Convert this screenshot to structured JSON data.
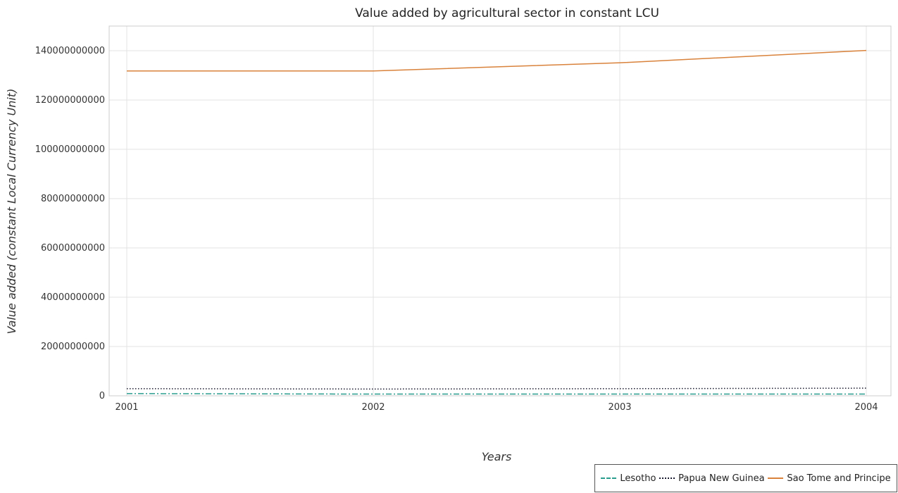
{
  "chart_data": {
    "type": "line",
    "title": "Value added by agricultural sector in constant LCU",
    "xlabel": "Years",
    "ylabel": "Value added (constant Local Currency Unit)",
    "categories": [
      "2001",
      "2002",
      "2003",
      "2004"
    ],
    "ylim": [
      0,
      150000000000
    ],
    "yticks": [
      0,
      20000000000,
      40000000000,
      60000000000,
      80000000000,
      100000000000,
      120000000000,
      140000000000
    ],
    "ytick_labels": [
      "0",
      "20000000000",
      "40000000000",
      "60000000000",
      "80000000000",
      "100000000000",
      "120000000000",
      "140000000000"
    ],
    "grid": true,
    "legend_position": "bottom-right",
    "series": [
      {
        "name": "Lesotho",
        "color": "#2a9d8f",
        "dash": "dashdot",
        "values": [
          900000000,
          700000000,
          720000000,
          710000000
        ]
      },
      {
        "name": "Papua New Guinea",
        "color": "#1a1a2e",
        "dash": "dotted",
        "values": [
          2900000000,
          2750000000,
          2900000000,
          3100000000
        ]
      },
      {
        "name": "Sao Tome and Principe",
        "color": "#d9823b",
        "dash": "solid",
        "values": [
          131800000000,
          131800000000,
          135100000000,
          140100000000
        ]
      }
    ]
  }
}
